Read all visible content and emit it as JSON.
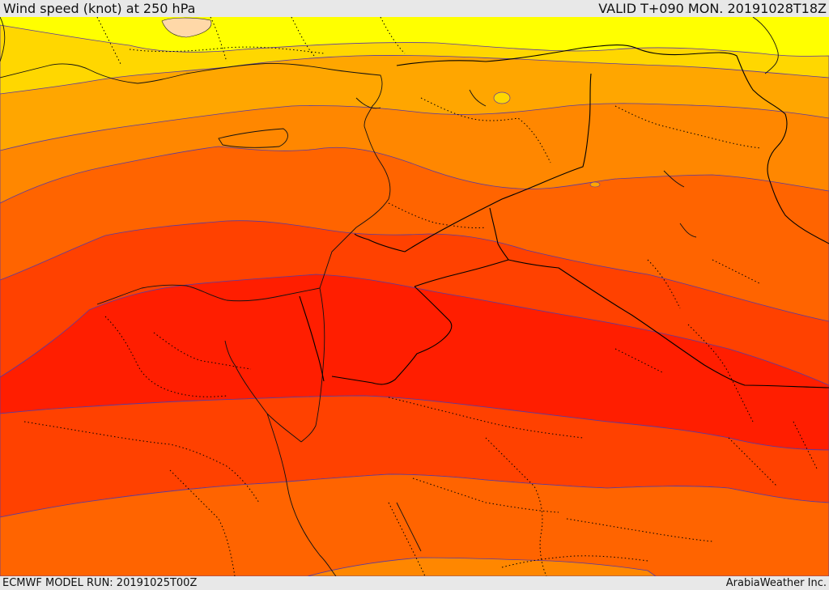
{
  "header": {
    "title": "Wind speed (knot) at 250 hPa",
    "valid": "VALID T+090 MON. 20191028T18Z"
  },
  "footer": {
    "model_run": "ECMWF MODEL RUN: 20191025T00Z",
    "credit": "ArabiaWeather Inc."
  },
  "map": {
    "variable": "Wind speed at 250 hPa",
    "units": "knot",
    "band_colors": [
      "#ffff00",
      "#ffd700",
      "#ffa600",
      "#ff8700",
      "#ff6400",
      "#ff4100",
      "#ff1e00"
    ],
    "contour_color": "#5a3aa0",
    "border_color": "#000000"
  }
}
